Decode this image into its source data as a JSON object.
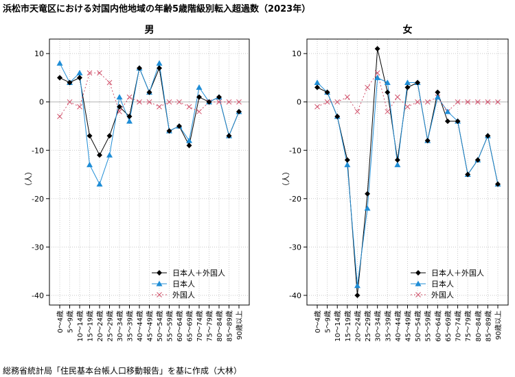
{
  "title": "浜松市天竜区における対国内他地域の年齢5歳階級別転入超過数（2023年）",
  "source": "総務省統計局「住民基本台帳人口移動報告」を基に作成（大林）",
  "colors": {
    "total": "#000000",
    "japanese": "#1f8dd6",
    "foreign": "#d0506a",
    "grid": "#c8c8c8",
    "zero": "#b4b4b4"
  },
  "chart_data": [
    {
      "type": "line",
      "title": "男",
      "xlabel": "",
      "ylabel": "（人）",
      "ylim": [
        -42,
        13
      ],
      "yticks": [
        10,
        0,
        -10,
        -20,
        -30,
        -40
      ],
      "grid": true,
      "legend_position": "bottom-right",
      "categories": [
        "0～4歳",
        "5～9歳",
        "10～14歳",
        "15～19歳",
        "20～24歳",
        "25～29歳",
        "30～34歳",
        "35～39歳",
        "40～44歳",
        "45～49歳",
        "50～54歳",
        "55～59歳",
        "60～64歳",
        "65～69歳",
        "70～74歳",
        "75～79歳",
        "80～84歳",
        "85～89歳",
        "90歳以上"
      ],
      "series": [
        {
          "name": "日本人＋外国人",
          "marker": "diamond",
          "values": [
            5,
            4,
            5,
            -7,
            -11,
            -7,
            -1,
            -3,
            7,
            2,
            7,
            -6,
            -5,
            -9,
            1,
            0,
            1,
            -7,
            -2
          ]
        },
        {
          "name": "日本人",
          "marker": "triangle",
          "values": [
            8,
            4,
            6,
            -13,
            -17,
            -11,
            1,
            -4,
            7,
            2,
            8,
            -6,
            -5,
            -8,
            3,
            0,
            1,
            -7,
            -2
          ]
        },
        {
          "name": "外国人",
          "marker": "cross",
          "values": [
            -3,
            0,
            -1,
            6,
            6,
            4,
            -2,
            1,
            0,
            0,
            -1,
            0,
            0,
            -1,
            -2,
            0,
            0,
            0,
            0
          ]
        }
      ]
    },
    {
      "type": "line",
      "title": "女",
      "xlabel": "",
      "ylabel": "（人）",
      "ylim": [
        -42,
        13
      ],
      "yticks": [
        10,
        0,
        -10,
        -20,
        -30,
        -40
      ],
      "grid": true,
      "legend_position": "bottom-right",
      "categories": [
        "0～4歳",
        "5～9歳",
        "10～14歳",
        "15～19歳",
        "20～24歳",
        "25～29歳",
        "30～34歳",
        "35～39歳",
        "40～44歳",
        "45～49歳",
        "50～54歳",
        "55～59歳",
        "60～64歳",
        "65～69歳",
        "70～74歳",
        "75～79歳",
        "80～84歳",
        "85～89歳",
        "90歳以上"
      ],
      "series": [
        {
          "name": "日本人＋外国人",
          "marker": "diamond",
          "values": [
            3,
            2,
            -3,
            -12,
            -40,
            -19,
            11,
            2,
            -12,
            3,
            4,
            -8,
            2,
            -4,
            -4,
            -15,
            -12,
            -7,
            -17
          ]
        },
        {
          "name": "日本人",
          "marker": "triangle",
          "values": [
            4,
            2,
            -3,
            -13,
            -38,
            -22,
            5,
            4,
            -13,
            4,
            4,
            -8,
            1,
            -2,
            -4,
            -15,
            -12,
            -7,
            -17
          ]
        },
        {
          "name": "外国人",
          "marker": "cross",
          "values": [
            -1,
            0,
            0,
            1,
            -2,
            3,
            6,
            -2,
            1,
            -1,
            0,
            0,
            1,
            -2,
            0,
            0,
            0,
            0,
            0
          ]
        }
      ]
    }
  ]
}
